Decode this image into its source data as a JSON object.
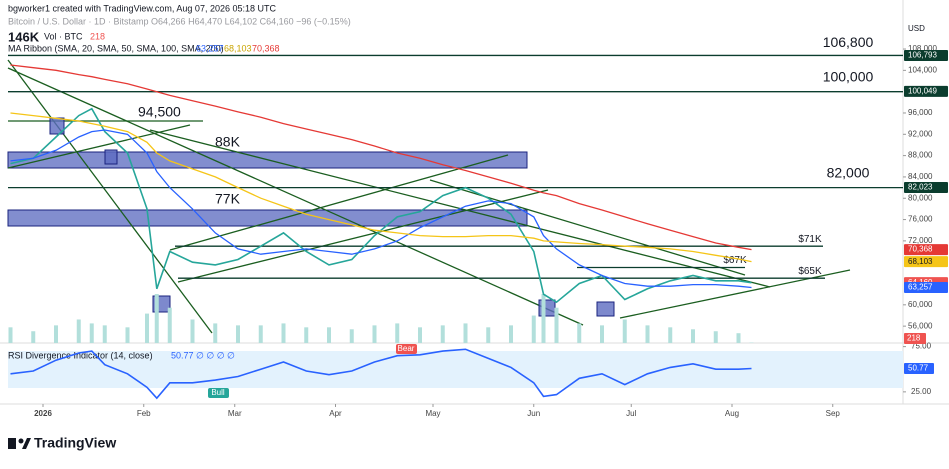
{
  "header": {
    "author_line": "bgworker1 created with TradingView.com, Aug 07, 2026 05:18 UTC",
    "symbol_line": "Bitcoin / U.S. Dollar · 1D · Bitstamp  O64,266 H64,470 L64,102 C64,160 −96 (−0.15%)",
    "volume_line": "Vol · BTC",
    "volume_value": "218",
    "ma_line": "MA Ribbon (SMA, 20, SMA, 50, SMA, 100, SMA, 200)",
    "ma_values": [
      "63,257",
      "68,103",
      "70,368"
    ],
    "currency": "USD",
    "corner_label": "146K"
  },
  "chart_data": [
    {
      "type": "line",
      "x": [
        "2025-12-22",
        "2025-12-29",
        "2026-01-05",
        "2026-01-12",
        "2026-01-16",
        "2026-01-20",
        "2026-01-27",
        "2026-02-02",
        "2026-02-05",
        "2026-02-09",
        "2026-02-16",
        "2026-02-23",
        "2026-03-02",
        "2026-03-09",
        "2026-03-16",
        "2026-03-23",
        "2026-03-30",
        "2026-04-06",
        "2026-04-13",
        "2026-04-20",
        "2026-04-27",
        "2026-05-04",
        "2026-05-11",
        "2026-05-18",
        "2026-05-25",
        "2026-06-01",
        "2026-06-04",
        "2026-06-08",
        "2026-06-15",
        "2026-06-22",
        "2026-06-29",
        "2026-07-06",
        "2026-07-13",
        "2026-07-20",
        "2026-07-27",
        "2026-08-03",
        "2026-08-07"
      ],
      "series": [
        {
          "name": "Bitcoin / U.S. Dollar",
          "color": "#26a69a",
          "values": [
            86500,
            87500,
            91500,
            95500,
            96800,
            92500,
            88500,
            78000,
            63000,
            70000,
            68000,
            67500,
            68500,
            71000,
            73500,
            70000,
            67500,
            68500,
            73000,
            76500,
            77500,
            80500,
            82000,
            80000,
            77000,
            70000,
            62000,
            60500,
            64000,
            65500,
            61000,
            63000,
            64500,
            65500,
            64500,
            64500,
            64160
          ]
        },
        {
          "color": "#2962ff",
          "values": [
            87000,
            87500,
            89000,
            91500,
            92500,
            92800,
            92000,
            88500,
            85000,
            82000,
            78000,
            73500,
            70500,
            69500,
            70000,
            70500,
            70000,
            69500,
            70500,
            72000,
            74500,
            76500,
            78500,
            79500,
            79000,
            76500,
            73000,
            70500,
            67500,
            65500,
            64000,
            63500,
            63500,
            63800,
            63800,
            63500,
            63257
          ]
        },
        {
          "color": "#f5c518",
          "values": [
            96000,
            95500,
            95000,
            94500,
            94000,
            93500,
            92500,
            90500,
            88500,
            87000,
            85500,
            84000,
            82000,
            80000,
            78500,
            77000,
            76000,
            75000,
            74000,
            73500,
            73000,
            72800,
            72800,
            73000,
            73000,
            72500,
            72000,
            71800,
            71500,
            71300,
            71000,
            70800,
            70500,
            70000,
            69300,
            68600,
            68103
          ]
        },
        {
          "color": "#e53935",
          "values": [
            105000,
            104500,
            104000,
            103200,
            102800,
            102300,
            101500,
            100500,
            100000,
            99300,
            98300,
            97300,
            96200,
            95200,
            94000,
            93000,
            92000,
            91000,
            89800,
            88500,
            87500,
            86300,
            85200,
            84000,
            82800,
            81500,
            81000,
            80500,
            79000,
            77800,
            76500,
            75200,
            74000,
            72800,
            71600,
            70800,
            70368
          ]
        }
      ],
      "xticks": [
        {
          "value": "2026-01-01",
          "label": "2026"
        },
        {
          "value": "2026-02-01",
          "label": "Feb"
        },
        {
          "value": "2026-03-01",
          "label": "Mar"
        },
        {
          "value": "2026-04-01",
          "label": "Apr"
        },
        {
          "value": "2026-05-01",
          "label": "May"
        },
        {
          "value": "2026-06-01",
          "label": "Jun"
        },
        {
          "value": "2026-07-01",
          "label": "Jul"
        },
        {
          "value": "2026-08-01",
          "label": "Aug"
        },
        {
          "value": "2026-09-01",
          "label": "Sep"
        }
      ],
      "ylim": [
        53400,
        115700
      ],
      "yticks": [
        {
          "value": 108000,
          "label": "108,000"
        },
        {
          "value": 104000,
          "label": "104,000"
        },
        {
          "value": 96000,
          "label": "96,000"
        },
        {
          "value": 92000,
          "label": "92,000"
        },
        {
          "value": 88000,
          "label": "88,000"
        },
        {
          "value": 84000,
          "label": "84,000"
        },
        {
          "value": 80000,
          "label": "80,000"
        },
        {
          "value": 76000,
          "label": "76,000"
        },
        {
          "value": 72000,
          "label": "72,000"
        },
        {
          "value": 60000,
          "label": "60,000"
        },
        {
          "value": 56000,
          "label": "56,000"
        }
      ],
      "levels": [
        {
          "value": 106800,
          "label": "106,800"
        },
        {
          "value": 100000,
          "label": "100,000"
        },
        {
          "value": 82000,
          "label": "82,000"
        },
        {
          "value": 71000,
          "label": "$71K"
        },
        {
          "value": 67000,
          "label": "$67K"
        },
        {
          "value": 65000,
          "label": "$65K"
        }
      ],
      "price_labels": [
        {
          "value": 106793,
          "label": "106,793",
          "color": "#0b3d2e"
        },
        {
          "value": 100049,
          "label": "100,049",
          "color": "#0b3d2e"
        },
        {
          "value": 82023,
          "label": "82,023",
          "color": "#0b3d2e"
        },
        {
          "value": 70368,
          "label": "70,368",
          "color": "#e53935"
        },
        {
          "value": 68103,
          "label": "68,103",
          "color": "#f5c518"
        },
        {
          "value": 64160,
          "label": "64,160",
          "color": "#ef5350"
        },
        {
          "value": 63257,
          "label": "63,257",
          "color": "#2962ff"
        }
      ],
      "annotations": [
        "94,500",
        "88K",
        "77K"
      ]
    },
    {
      "type": "bar",
      "x": [
        "2025-12-22",
        "2025-12-29",
        "2026-01-05",
        "2026-01-12",
        "2026-01-16",
        "2026-01-20",
        "2026-01-27",
        "2026-02-02",
        "2026-02-05",
        "2026-02-09",
        "2026-02-16",
        "2026-02-23",
        "2026-03-02",
        "2026-03-09",
        "2026-03-16",
        "2026-03-23",
        "2026-03-30",
        "2026-04-06",
        "2026-04-13",
        "2026-04-20",
        "2026-04-27",
        "2026-05-04",
        "2026-05-11",
        "2026-05-18",
        "2026-05-25",
        "2026-06-01",
        "2026-06-04",
        "2026-06-08",
        "2026-06-15",
        "2026-06-22",
        "2026-06-29",
        "2026-07-06",
        "2026-07-13",
        "2026-07-20",
        "2026-07-27",
        "2026-08-03",
        "2026-08-07"
      ],
      "values": [
        8000,
        6000,
        9000,
        12000,
        10000,
        9000,
        8000,
        15000,
        25000,
        18000,
        12000,
        10000,
        9000,
        9000,
        10000,
        8000,
        8000,
        7000,
        9000,
        10000,
        8000,
        9000,
        10000,
        8000,
        9000,
        14000,
        25000,
        18000,
        10000,
        9000,
        12000,
        9000,
        8000,
        7000,
        6000,
        5000,
        218
      ],
      "color": "#b2dfdb",
      "ylim": [
        0,
        50000
      ]
    },
    {
      "type": "line",
      "title": "RSI Divergence Indicator (14, close)",
      "title_value": "50.77 ∅ ∅ ∅ ∅",
      "x": [
        "2025-12-22",
        "2025-12-29",
        "2026-01-05",
        "2026-01-12",
        "2026-01-16",
        "2026-01-20",
        "2026-01-27",
        "2026-02-02",
        "2026-02-05",
        "2026-02-09",
        "2026-02-16",
        "2026-02-23",
        "2026-03-02",
        "2026-03-09",
        "2026-03-16",
        "2026-03-23",
        "2026-03-30",
        "2026-04-06",
        "2026-04-13",
        "2026-04-20",
        "2026-04-27",
        "2026-05-04",
        "2026-05-11",
        "2026-05-18",
        "2026-05-25",
        "2026-06-01",
        "2026-06-04",
        "2026-06-08",
        "2026-06-15",
        "2026-06-22",
        "2026-06-29",
        "2026-07-06",
        "2026-07-13",
        "2026-07-20",
        "2026-07-27",
        "2026-08-03",
        "2026-08-07"
      ],
      "series": [
        {
          "color": "#2962ff",
          "values": [
            45,
            48,
            60,
            68,
            70,
            55,
            45,
            30,
            18,
            35,
            35,
            38,
            42,
            50,
            58,
            48,
            44,
            48,
            58,
            65,
            66,
            70,
            72,
            62,
            52,
            35,
            20,
            22,
            40,
            45,
            33,
            45,
            52,
            56,
            50,
            50,
            50.77
          ]
        }
      ],
      "ylim": [
        16,
        79
      ],
      "yticks": [
        {
          "value": 75,
          "label": "75.00"
        },
        {
          "value": 25,
          "label": "25.00"
        }
      ],
      "last_label": "50.77",
      "annotations": [
        "Bear",
        "Bull"
      ]
    }
  ],
  "footer": "TradingView"
}
